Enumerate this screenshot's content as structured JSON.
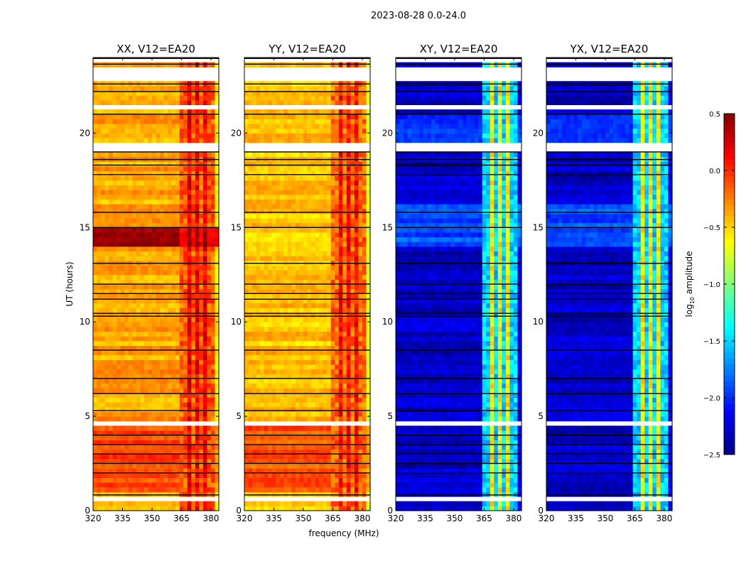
{
  "chart_data": {
    "type": "heatmap",
    "title": "2023-08-28 0.0-24.0",
    "xlabel": "frequency (MHz)",
    "ylabel": "UT (hours)",
    "xlim": [
      320,
      384
    ],
    "ylim": [
      0,
      24
    ],
    "xticks": [
      320,
      335,
      350,
      365,
      380
    ],
    "yticks": [
      0,
      5,
      10,
      15,
      20
    ],
    "colorbar": {
      "label_prefix": "log",
      "label_sub": "10",
      "label_suffix": " amplitude",
      "range": [
        -2.5,
        0.5
      ],
      "ticks": [
        "0.5",
        "0.0",
        "−0.5",
        "−1.0",
        "−1.5",
        "−2.0",
        "−2.5"
      ],
      "tick_values": [
        0.5,
        0.0,
        -0.5,
        -1.0,
        -1.5,
        -2.0,
        -2.5
      ],
      "colormap": "jet"
    },
    "time_resolution_hours": 0.25,
    "freq_resolution_mhz": 2,
    "flagged_time_ranges": [
      [
        0.5,
        0.8
      ],
      [
        4.6,
        4.8
      ],
      [
        5.5,
        5.6
      ],
      [
        19.05,
        19.6
      ],
      [
        21.2,
        21.45
      ],
      [
        22.85,
        23.4
      ],
      [
        23.75,
        23.9
      ]
    ],
    "black_line_times": [
      0.83,
      2.0,
      2.5,
      3.0,
      3.5,
      4.0,
      5.3,
      6.2,
      7.0,
      8.5,
      10.3,
      10.45,
      11.2,
      11.5,
      12.0,
      13.1,
      15.0,
      15.8,
      17.8,
      18.3,
      18.6,
      19.0,
      21.0,
      22.2,
      22.6,
      23.65,
      23.95
    ],
    "rfi_band_mhz": [
      363,
      381
    ],
    "rfi_dips_mhz": [
      366,
      371,
      375,
      380
    ],
    "panels": [
      {
        "title": "XX, V12=EA20",
        "base": -0.35,
        "band": 0.15,
        "segments": [
          {
            "t": [
              0.8,
              4.6
            ],
            "base": -0.05
          },
          {
            "t": [
              14.0,
              15.0
            ],
            "base": 0.45
          }
        ]
      },
      {
        "title": "YY, V12=EA20",
        "base": -0.45,
        "band": 0.1,
        "segments": [
          {
            "t": [
              0.8,
              4.6
            ],
            "base": -0.12
          }
        ]
      },
      {
        "title": "XY, V12=EA20",
        "base": -2.3,
        "band": -0.6,
        "segments": [
          {
            "t": [
              13.8,
              16.2
            ],
            "base": -1.9
          },
          {
            "t": [
              19.5,
              21.0
            ],
            "base": -2.0
          }
        ]
      },
      {
        "title": "YX, V12=EA20",
        "base": -2.3,
        "band": -0.6,
        "segments": [
          {
            "t": [
              13.8,
              16.2
            ],
            "base": -1.9
          },
          {
            "t": [
              19.5,
              21.0
            ],
            "base": -2.0
          }
        ]
      }
    ]
  }
}
